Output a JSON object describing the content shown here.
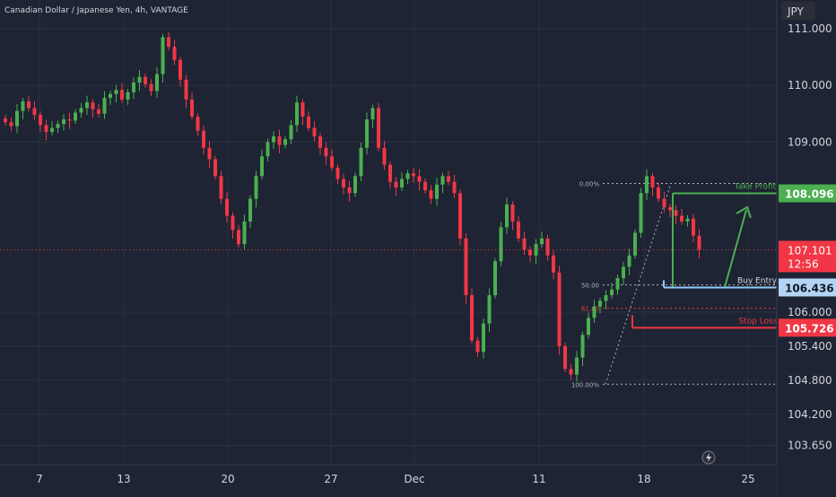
{
  "header": {
    "title": "Canadian Dollar / Japanese Yen, 4h, VANTAGE"
  },
  "currency": "JPY",
  "colors": {
    "background": "#1e2433",
    "up": "#4caf50",
    "down": "#f23645",
    "text": "#d1d4dc",
    "grid": "#2a3142",
    "take_profit": "#4caf50",
    "stop_loss": "#f23645",
    "buy_entry": "#90caf9",
    "current_price": "#f23645"
  },
  "chart_data": {
    "type": "candlestick",
    "y_ticks": [
      "111.000",
      "110.000",
      "109.000",
      "106.000",
      "105.400",
      "104.800",
      "104.200",
      "103.650"
    ],
    "x_ticks": [
      "7",
      "13",
      "20",
      "27",
      "Dec",
      "11",
      "18",
      "25"
    ],
    "ylim": [
      103.6,
      111.3
    ],
    "current_price": {
      "value": "107.101",
      "countdown": "12:56"
    },
    "price_labels": [
      {
        "name": "Take Profit",
        "value": "108.096",
        "color": "#4caf50",
        "text_color": "#ffffff"
      },
      {
        "name": "Buy Entry",
        "value": "106.436",
        "color": "#b3d4f5",
        "text_color": "#131722"
      },
      {
        "name": "Stop Loss",
        "value": "105.726",
        "color": "#f23645",
        "text_color": "#ffffff"
      }
    ],
    "annotations": [
      {
        "text": "Take Profit",
        "price": 108.096,
        "color": "#4caf50"
      },
      {
        "text": "Buy Entry",
        "price": 106.436,
        "color": "#d1d4dc"
      },
      {
        "text": "Stop Loss",
        "price": 105.726,
        "color": "#f23645"
      }
    ],
    "fib_levels": [
      {
        "label": "0.00%",
        "price": 108.27,
        "color": "#b2b5be"
      },
      {
        "label": "50.00",
        "price": 106.48,
        "color": "#b2b5be"
      },
      {
        "label": "61.80",
        "price": 106.07,
        "color": "#f23645"
      },
      {
        "label": "100.00%",
        "price": 104.73,
        "color": "#b2b5be"
      }
    ],
    "closes": [
      109.35,
      109.28,
      109.55,
      109.72,
      109.6,
      109.48,
      109.3,
      109.18,
      109.25,
      109.32,
      109.4,
      109.38,
      109.52,
      109.6,
      109.7,
      109.58,
      109.5,
      109.78,
      109.85,
      109.92,
      109.75,
      109.88,
      110.05,
      110.15,
      110.02,
      109.9,
      110.2,
      110.85,
      110.68,
      110.45,
      110.1,
      109.75,
      109.45,
      109.2,
      108.9,
      108.7,
      108.4,
      108.0,
      107.7,
      107.45,
      107.2,
      107.6,
      108.0,
      108.4,
      108.75,
      109.0,
      109.1,
      108.95,
      109.05,
      109.3,
      109.7,
      109.45,
      109.25,
      109.1,
      108.9,
      108.75,
      108.55,
      108.35,
      108.2,
      108.1,
      108.4,
      108.9,
      109.4,
      109.6,
      108.9,
      108.6,
      108.3,
      108.2,
      108.35,
      108.45,
      108.4,
      108.3,
      108.15,
      108.0,
      108.25,
      108.4,
      108.3,
      108.1,
      107.3,
      106.3,
      105.5,
      105.3,
      105.8,
      106.3,
      106.9,
      107.5,
      107.9,
      107.6,
      107.3,
      107.1,
      107.0,
      107.2,
      107.3,
      107.0,
      106.7,
      105.4,
      105.0,
      104.9,
      105.2,
      105.6,
      105.9,
      106.1,
      106.2,
      106.3,
      106.4,
      106.6,
      106.8,
      107.0,
      107.4,
      108.1,
      108.4,
      108.2,
      108.0,
      107.85,
      107.8,
      107.7,
      107.6,
      107.65,
      107.35,
      107.1
    ]
  }
}
